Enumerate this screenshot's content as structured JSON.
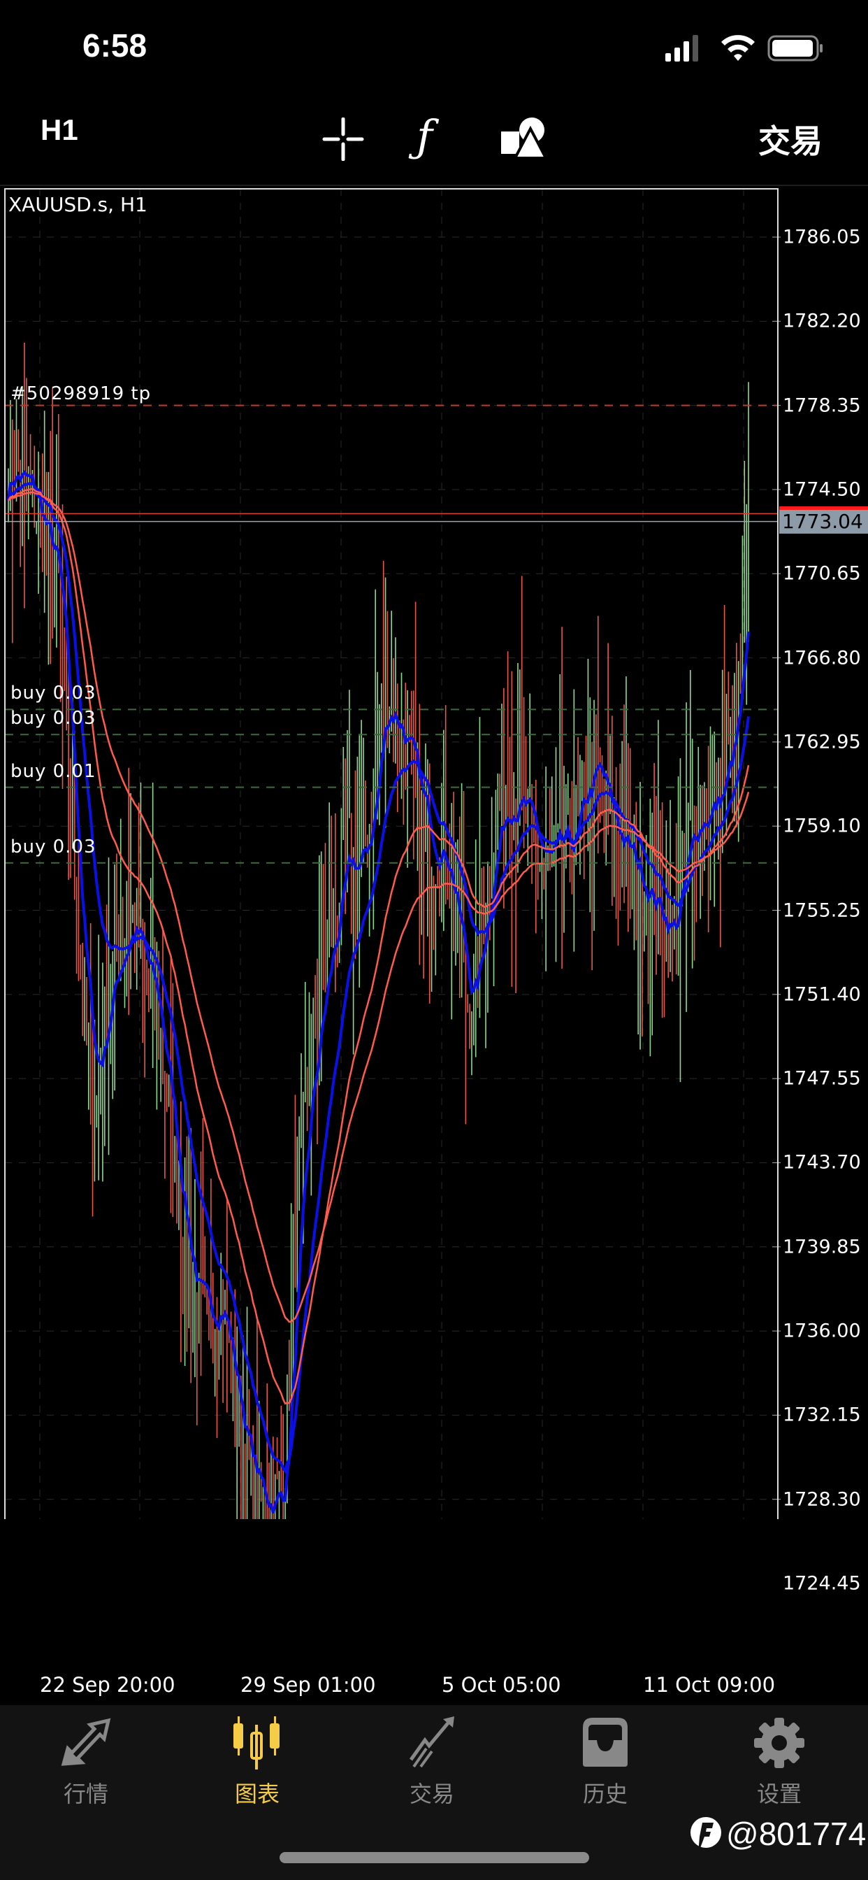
{
  "status_bar": {
    "time": "6:58",
    "battery": "full",
    "wifi": "on",
    "signal_bars": 3
  },
  "toolbar": {
    "timeframe": "H1",
    "icons": [
      "crosshair-icon",
      "function-icon",
      "shapes-icon"
    ],
    "trade_label": "交易"
  },
  "chart_data": {
    "type": "candlestick",
    "title": "XAUUSD.s, H1",
    "y_ticks": [
      "1786.05",
      "1782.20",
      "1778.35",
      "1774.50",
      "1770.65",
      "1766.80",
      "1762.95",
      "1759.10",
      "1755.25",
      "1751.40",
      "1747.55",
      "1743.70",
      "1739.85",
      "1736.00",
      "1732.15",
      "1728.30",
      "1724.45"
    ],
    "ylim": [
      1721,
      1789
    ],
    "x_ticks": [
      "22 Sep 20:00",
      "29 Sep 01:00",
      "5 Oct 05:00",
      "11 Oct 09:00"
    ],
    "approx_closes": [
      1776,
      1775,
      1774,
      1772,
      1770,
      1760,
      1750,
      1746,
      1752,
      1754,
      1755,
      1752,
      1750,
      1745,
      1740,
      1737,
      1736,
      1738,
      1733,
      1730,
      1728,
      1728,
      1729,
      1742,
      1748,
      1752,
      1755,
      1758,
      1757,
      1760,
      1766,
      1764,
      1762,
      1759,
      1758,
      1758,
      1753,
      1750,
      1756,
      1760,
      1761,
      1760,
      1758,
      1757,
      1758,
      1758,
      1761,
      1762,
      1759,
      1758,
      1757,
      1756,
      1755,
      1754,
      1758,
      1760,
      1760,
      1761,
      1764,
      1770
    ],
    "bull_color": "#8fd88f",
    "bear_color": "#e8584a",
    "moving_averages": [
      {
        "color": "#0a10e6",
        "period": 8
      },
      {
        "color": "#0a10e6",
        "period": 24
      },
      {
        "color": "#ff5c4d",
        "period": 45
      },
      {
        "color": "#ff5c4d",
        "period": 70
      }
    ],
    "current_price": "1773.04",
    "ask_price": 1773.4,
    "tp_line": {
      "label": "#50298919 tp",
      "price": 1778.35
    },
    "orders": [
      {
        "label": "buy 0.03",
        "price": 1764.44
      },
      {
        "label": "buy 0.03",
        "price": 1763.29
      },
      {
        "label": "buy 0.01",
        "price": 1760.88
      },
      {
        "label": "buy 0.03",
        "price": 1757.42
      }
    ],
    "grid": true
  },
  "tabs": [
    {
      "label": "行情",
      "icon": "quotes-arrows-icon",
      "active": false
    },
    {
      "label": "图表",
      "icon": "candlestick-icon",
      "active": true
    },
    {
      "label": "交易",
      "icon": "trade-trend-icon",
      "active": false
    },
    {
      "label": "历史",
      "icon": "history-inbox-icon",
      "active": false
    },
    {
      "label": "设置",
      "icon": "settings-gear-icon",
      "active": false
    }
  ],
  "colors": {
    "accent": "#f5cc45",
    "inactive": "#888888",
    "tabbar_bg": "#131313"
  },
  "watermark": "@801774"
}
